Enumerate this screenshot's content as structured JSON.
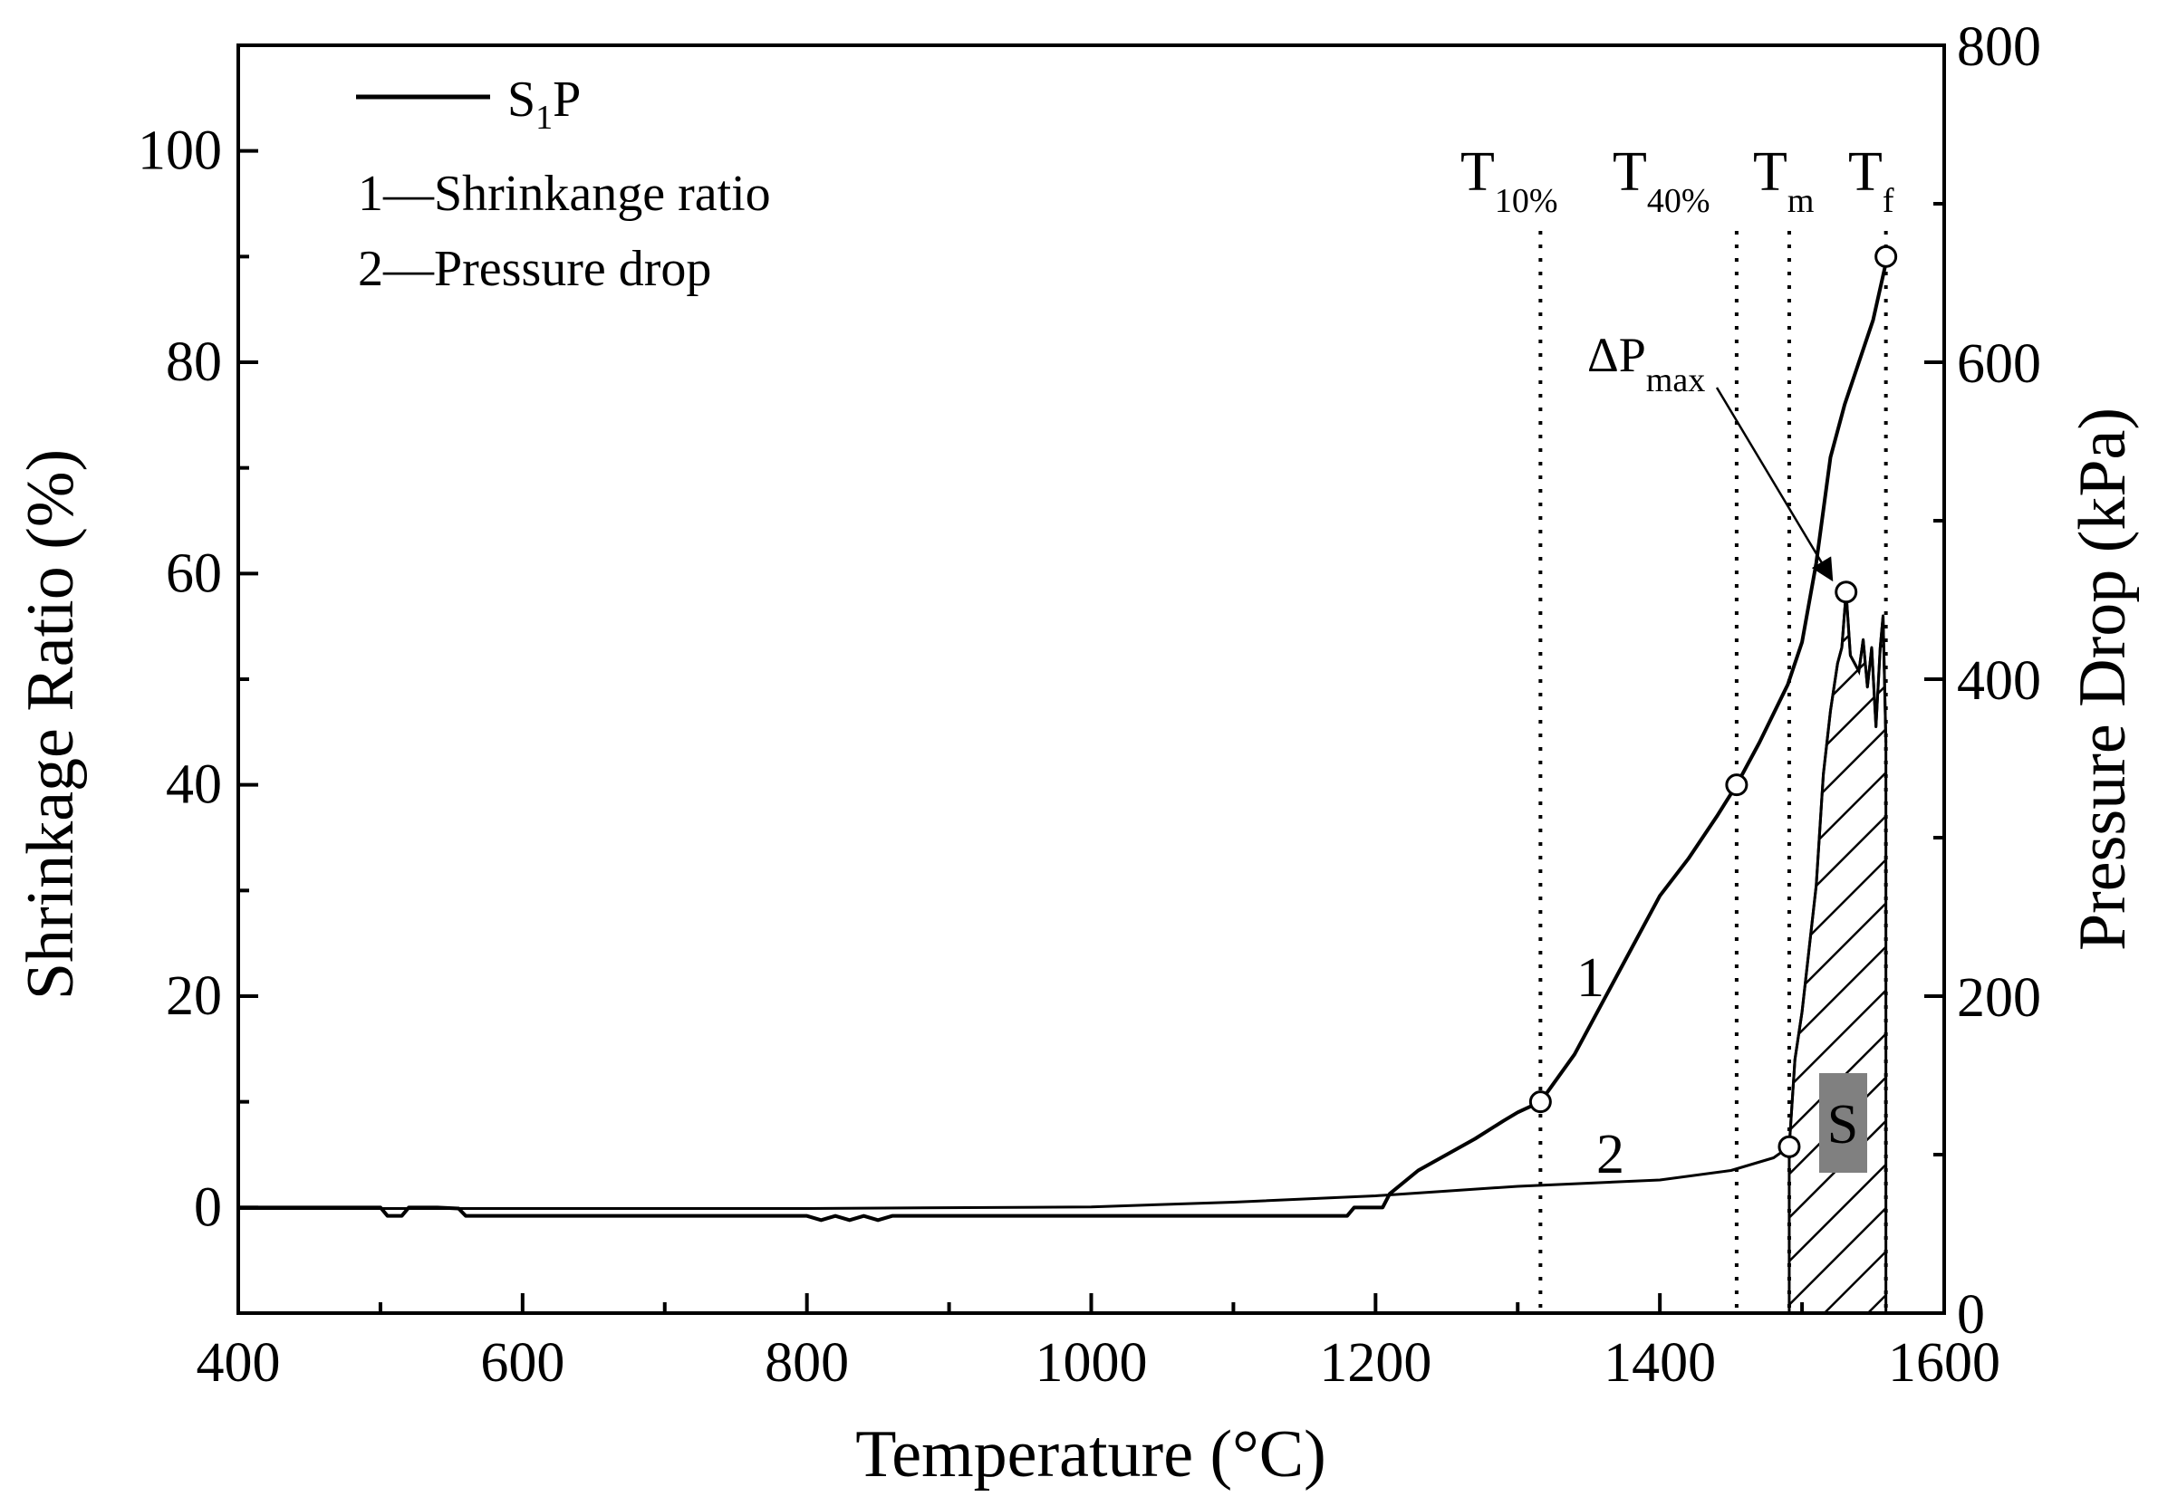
{
  "chart_data": {
    "type": "line",
    "title": "",
    "xlabel": "Temperature (°C)",
    "ylabel_left": "Shrinkage Ratio (%)",
    "ylabel_right": "Pressure Drop (kPa)",
    "xlim": [
      400,
      1600
    ],
    "ylim_left": [
      -10,
      110
    ],
    "ylim_right": [
      0,
      800
    ],
    "x_ticks": [
      400,
      600,
      800,
      1000,
      1200,
      1400,
      1600
    ],
    "y_left_ticks": [
      0,
      20,
      40,
      60,
      80,
      100
    ],
    "y_right_ticks": [
      0,
      200,
      400,
      600,
      800
    ],
    "grid": false,
    "legend": {
      "position": "top-left",
      "series_name": "S",
      "series_sub": "1",
      "series_suffix": "P",
      "lines": [
        "1—Shrinkange ratio",
        "2—Pressure drop"
      ]
    },
    "series": [
      {
        "name": "Shrinkage ratio",
        "label": "1",
        "axis": "left",
        "x": [
          400,
          500,
          505,
          515,
          520,
          530,
          540,
          555,
          560,
          800,
          810,
          820,
          830,
          840,
          850,
          860,
          870,
          1000,
          1180,
          1185,
          1205,
          1210,
          1230,
          1250,
          1270,
          1290,
          1300,
          1316,
          1340,
          1360,
          1380,
          1400,
          1420,
          1440,
          1454,
          1470,
          1490,
          1500,
          1510,
          1520,
          1530,
          1540,
          1550,
          1560
        ],
        "values": [
          0,
          0,
          -0.8,
          -0.8,
          0,
          0,
          0,
          -0.1,
          -0.8,
          -0.8,
          -1.2,
          -0.8,
          -1.2,
          -0.8,
          -1.2,
          -0.8,
          -0.8,
          -0.8,
          -0.8,
          0,
          0,
          1.3,
          3.5,
          5.0,
          6.5,
          8.2,
          9.0,
          10.0,
          14.5,
          19.5,
          24.5,
          29.5,
          33.0,
          37.0,
          40.0,
          44.0,
          49.5,
          53.5,
          61.0,
          71.0,
          76.0,
          80.0,
          84.0,
          90.0
        ]
      },
      {
        "name": "Pressure drop",
        "label": "2",
        "axis": "right",
        "x": [
          400,
          600,
          800,
          1000,
          1100,
          1200,
          1250,
          1300,
          1350,
          1400,
          1450,
          1480,
          1491,
          1495,
          1500,
          1505,
          1510,
          1515,
          1520,
          1525,
          1528,
          1531,
          1534,
          1537,
          1540,
          1543,
          1546,
          1549,
          1552,
          1555,
          1557,
          1559
        ],
        "values": [
          66,
          66,
          66,
          67,
          70,
          74,
          77,
          80,
          82,
          84,
          90,
          98,
          105,
          160,
          190,
          230,
          270,
          340,
          380,
          410,
          420,
          455,
          415,
          410,
          405,
          425,
          395,
          420,
          370,
          420,
          440,
          360
        ]
      }
    ],
    "markers": [
      {
        "label": "T",
        "sub": "10%",
        "x": 1316
      },
      {
        "label": "T",
        "sub": "40%",
        "x": 1454
      },
      {
        "label": "T",
        "sub": "m",
        "x": 1491
      },
      {
        "label": "T",
        "sub": "f",
        "x": 1559
      }
    ],
    "annotations": {
      "dp_max_symbol": "ΔP",
      "dp_max_sub": "max",
      "dp_max_point": {
        "x": 1531,
        "y_kpa": 455
      },
      "area_label": "S",
      "area_range": [
        1491,
        1559
      ],
      "curve1_label": "1",
      "curve2_label": "2"
    },
    "points_marked": [
      {
        "series": "Shrinkage ratio",
        "x": 1316,
        "y": 10
      },
      {
        "series": "Shrinkage ratio",
        "x": 1454,
        "y": 40
      },
      {
        "series": "Shrinkage ratio",
        "x": 1559,
        "y": 90
      },
      {
        "series": "Pressure drop",
        "x": 1491,
        "y": 105
      },
      {
        "series": "Pressure drop",
        "x": 1531,
        "y": 455
      }
    ],
    "colors": {
      "line": "#000000",
      "area_label_bg": "#808080"
    }
  }
}
